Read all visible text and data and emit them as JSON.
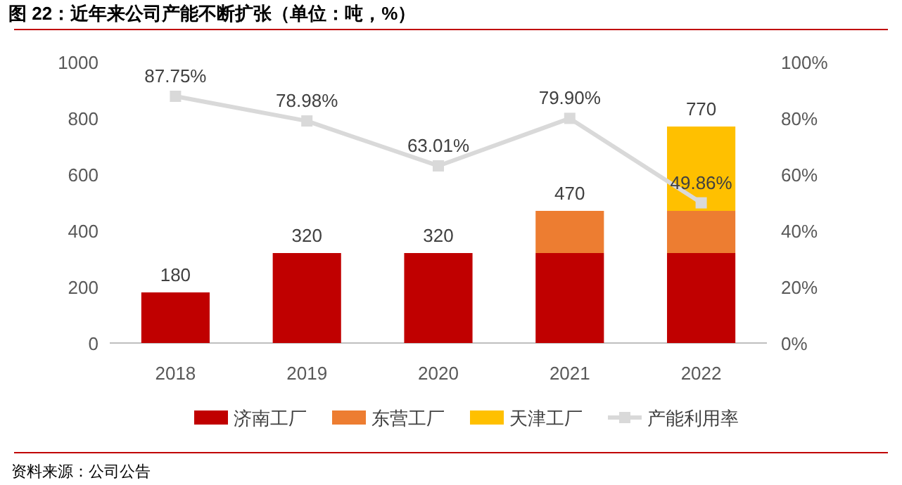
{
  "chart_data": {
    "type": "bar",
    "title": "图 22：近年来公司产能不断扩张（单位：吨，%）",
    "categories": [
      "2018",
      "2019",
      "2020",
      "2021",
      "2022"
    ],
    "stacked": true,
    "series": [
      {
        "name": "济南工厂",
        "color": "#c00000",
        "values": [
          180,
          320,
          320,
          320,
          320
        ]
      },
      {
        "name": "东营工厂",
        "color": "#ed7d31",
        "values": [
          0,
          0,
          0,
          150,
          150
        ]
      },
      {
        "name": "天津工厂",
        "color": "#ffc000",
        "values": [
          0,
          0,
          0,
          0,
          300
        ]
      },
      {
        "name": "产能利用率",
        "type": "line",
        "axis": "y2",
        "color": "#d9d9d9",
        "marker": "square",
        "values": [
          87.75,
          78.98,
          63.01,
          79.9,
          49.86
        ],
        "value_labels": [
          "87.75%",
          "78.98%",
          "63.01%",
          "79.90%",
          "49.86%"
        ]
      }
    ],
    "totals": [
      "180",
      "320",
      "320",
      "470",
      "770"
    ],
    "ylim": [
      0,
      1000
    ],
    "yticks": [
      0,
      200,
      400,
      600,
      800,
      1000
    ],
    "y2lim": [
      0,
      100
    ],
    "y2ticks": [
      {
        "value": 0,
        "label": "0%"
      },
      {
        "value": 20,
        "label": "20%"
      },
      {
        "value": 40,
        "label": "40%"
      },
      {
        "value": 60,
        "label": "60%"
      },
      {
        "value": 80,
        "label": "80%"
      },
      {
        "value": 100,
        "label": "100%"
      }
    ],
    "grid": false,
    "legend": "bottom",
    "annotations": [
      "资料来源：公司公告"
    ]
  }
}
